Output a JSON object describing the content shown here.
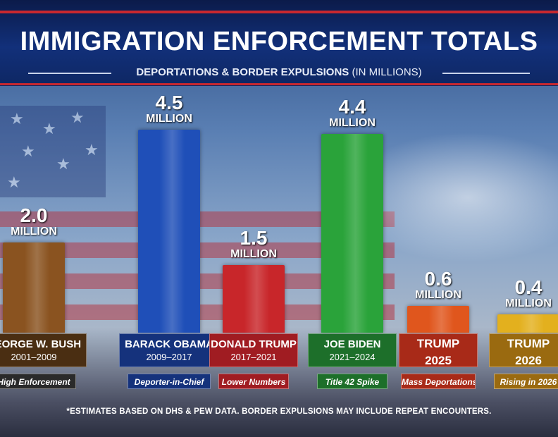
{
  "header": {
    "title": "IMMIGRATION ENFORCEMENT TOTALS",
    "subtitle_main": "DEPORTATIONS & BORDER EXPULSIONS",
    "subtitle_paren": "(IN MILLIONS)"
  },
  "chart_data": {
    "type": "bar",
    "title": "IMMIGRATION ENFORCEMENT TOTALS",
    "subtitle": "DEPORTATIONS & BORDER EXPULSIONS (IN MILLIONS)",
    "ylabel": "Millions",
    "ylim": [
      0,
      5
    ],
    "unit_label": "MILLION",
    "categories": [
      "GEORGE W. BUSH",
      "BARACK OBAMA",
      "DONALD TRUMP",
      "JOE BIDEN",
      "TRUMP",
      "TRUMP"
    ],
    "values": [
      2.0,
      4.5,
      1.5,
      4.4,
      0.6,
      0.4
    ],
    "value_labels": [
      "2.0",
      "4.5",
      "1.5",
      "4.4",
      "0.6",
      "0.4"
    ],
    "periods": [
      "2001–2009",
      "2009–2017",
      "2017–2021",
      "2021–2024",
      "2025",
      "2026"
    ],
    "tags": [
      "High Enforcement",
      "Deporter-in-Chief",
      "Lower Numbers",
      "Title 42 Spike",
      "Mass Deportations",
      "Rising in 2026"
    ],
    "colors": [
      "#8a5320",
      "#1f4fb8",
      "#c8262a",
      "#2aa33a",
      "#e0561d",
      "#e3b01e"
    ],
    "box_colors": [
      "#4a2e12",
      "#15327c",
      "#a01c22",
      "#1d6f2a",
      "#a82a18",
      "#9a6a10"
    ]
  },
  "footnote": "*ESTIMATES BASED ON DHS & PEW DATA. BORDER EXPULSIONS MAY INCLUDE REPEAT ENCOUNTERS."
}
